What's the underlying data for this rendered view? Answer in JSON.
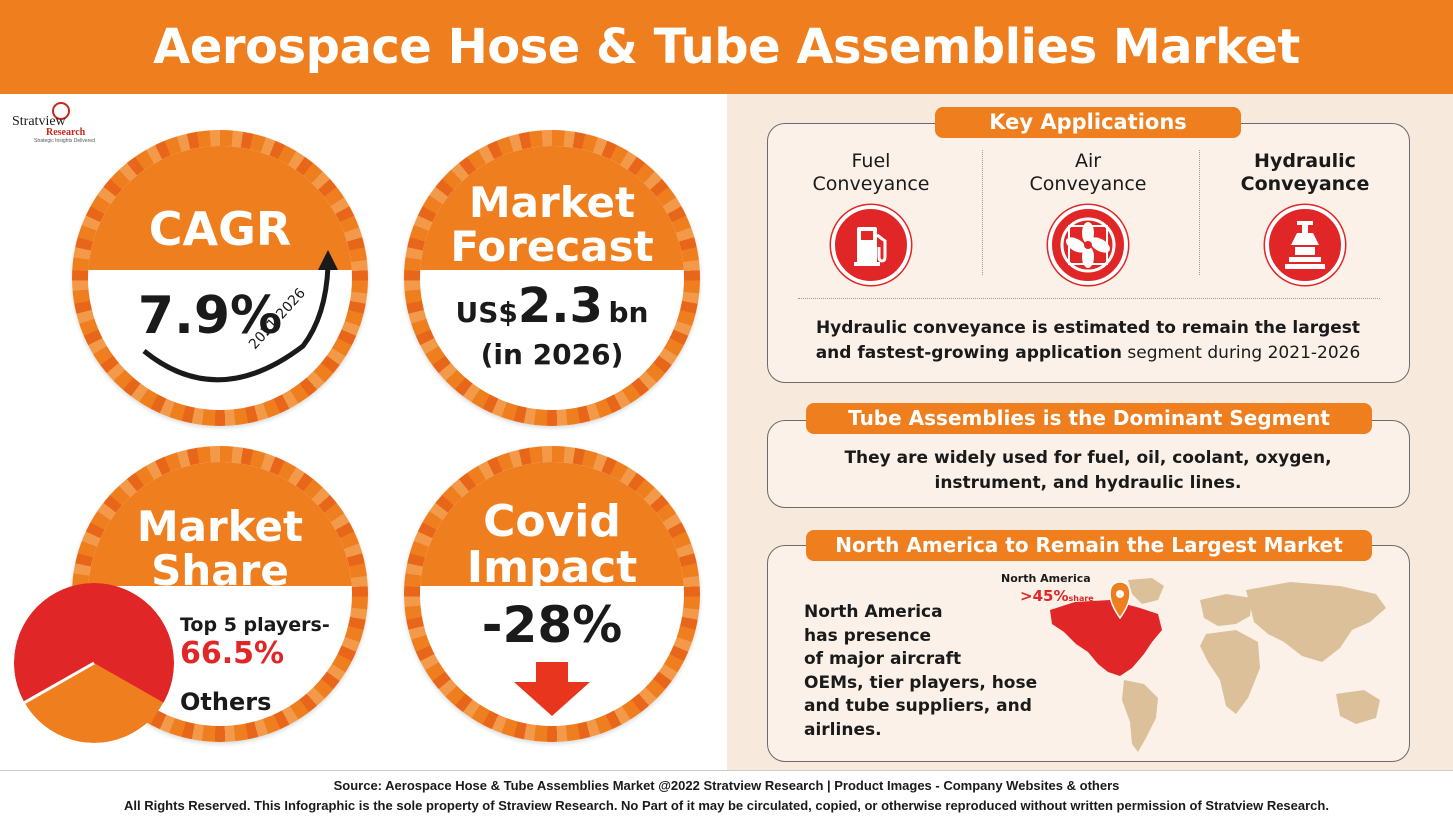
{
  "header": {
    "title": "Aerospace Hose & Tube Assemblies Market"
  },
  "logo": {
    "brand": "Stratview",
    "research": "Research",
    "tagline": "Strategic Insights Delivered"
  },
  "cagr": {
    "title": "CAGR",
    "value": "7.9%",
    "period": "2021-2026"
  },
  "forecast": {
    "title_line1": "Market",
    "title_line2": "Forecast",
    "currency": "US$",
    "value": "2.3",
    "unit": "bn",
    "year": "(in 2026)"
  },
  "share": {
    "title_line1": "Market",
    "title_line2": "Share",
    "top_label": "Top 5 players-",
    "top_value": "66.5%",
    "others_label": "Others",
    "top_fraction": 0.665
  },
  "covid": {
    "title_line1": "Covid",
    "title_line2": "Impact",
    "value": "-28%"
  },
  "applications": {
    "title": "Key Applications",
    "items": [
      {
        "line1": "Fuel",
        "line2": "Conveyance",
        "icon": "fuel-pump-icon"
      },
      {
        "line1": "Air",
        "line2": "Conveyance",
        "icon": "fan-icon"
      },
      {
        "line1": "Hydraulic",
        "line2": "Conveyance",
        "icon": "hydraulic-icon"
      }
    ],
    "note_bold_1": "Hydraulic conveyance is estimated to remain the largest",
    "note_bold_2": "and fastest-growing application",
    "note_rest": " segment during 2021-2026"
  },
  "tube": {
    "title": "Tube Assemblies is the Dominant Segment",
    "line1": "They are widely used for fuel, oil, coolant, oxygen,",
    "line2": "instrument, and hydraulic lines."
  },
  "region": {
    "title": "North America to Remain the Largest Market",
    "lines": [
      "North America",
      "has presence",
      "of major aircraft",
      "OEMs, tier players, hose",
      "and tube suppliers, and",
      "airlines."
    ],
    "map_label": "North America",
    "map_share": ">45%",
    "map_share_suffix": "share"
  },
  "colors": {
    "orange": "#ef7e1f",
    "red": "#e02626",
    "dark": "#1a1a1a",
    "beige": "#f8e9dd",
    "map": "#dcc09a"
  },
  "footer": {
    "source": "Source: Aerospace Hose & Tube Assemblies Market @2022 Stratview Research | Product Images - Company Websites & others",
    "rights": "All Rights Reserved. This Infographic is the sole property of Straview Research. No Part of it may be circulated, copied, or otherwise reproduced without written permission of Stratview Research."
  }
}
